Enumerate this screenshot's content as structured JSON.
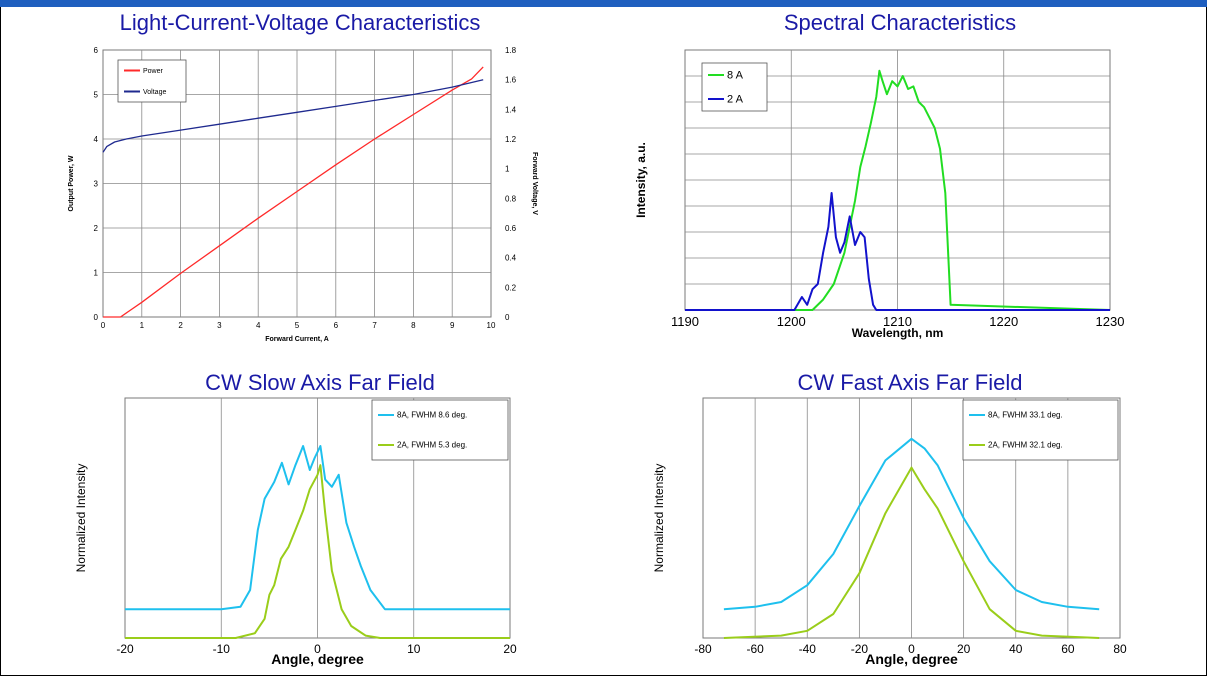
{
  "chart_data": [
    {
      "id": "lcv",
      "type": "line",
      "title": "Light-Current-Voltage Characteristics",
      "xlabel": "Forward Current, A",
      "ylabel": "Output Power, W",
      "y2label": "Forward Voltage, V",
      "xlim": [
        0,
        10
      ],
      "ylim": [
        0,
        6
      ],
      "y2lim": [
        0,
        1.8
      ],
      "xticks": [
        0,
        1,
        2,
        3,
        4,
        5,
        6,
        7,
        8,
        9,
        10
      ],
      "yticks": [
        0,
        1,
        2,
        3,
        4,
        5,
        6
      ],
      "y2ticks": [
        0,
        0.2,
        0.4,
        0.6,
        0.8,
        1,
        1.2,
        1.4,
        1.6,
        1.8
      ],
      "grid": true,
      "legend": "top-left",
      "series": [
        {
          "name": "Power",
          "axis": "left",
          "color": "#ff2a2a",
          "x": [
            0,
            0.45,
            1,
            2,
            3,
            4,
            5,
            6,
            7,
            8,
            9,
            9.5,
            9.8
          ],
          "y": [
            0,
            0,
            0.33,
            0.98,
            1.6,
            2.22,
            2.82,
            3.42,
            4.0,
            4.55,
            5.1,
            5.35,
            5.62
          ]
        },
        {
          "name": "Voltage",
          "axis": "right",
          "color": "#1f2a8f",
          "x": [
            0,
            0.1,
            0.3,
            0.6,
            1,
            2,
            3,
            4,
            5,
            6,
            7,
            8,
            9,
            9.8
          ],
          "y": [
            1.11,
            1.15,
            1.18,
            1.2,
            1.22,
            1.26,
            1.3,
            1.34,
            1.38,
            1.42,
            1.46,
            1.5,
            1.55,
            1.6
          ]
        }
      ]
    },
    {
      "id": "spec",
      "type": "line",
      "title": "Spectral Characteristics",
      "xlabel": "Wavelength, nm",
      "ylabel": "Intensity, a.u.",
      "xlim": [
        1190,
        1230
      ],
      "ylim": [
        0,
        1
      ],
      "xticks": [
        1190,
        1200,
        1210,
        1220,
        1230
      ],
      "grid": true,
      "legend": "top-left",
      "series": [
        {
          "name": "8 A",
          "color": "#22dd22",
          "x": [
            1190,
            1202,
            1203,
            1204,
            1205,
            1206,
            1206.5,
            1207,
            1207.5,
            1208,
            1208.3,
            1208.6,
            1209,
            1209.5,
            1210,
            1210.5,
            1211,
            1211.5,
            1212,
            1212.5,
            1213,
            1213.5,
            1214,
            1214.5,
            1215,
            1230
          ],
          "y": [
            0,
            0,
            0.04,
            0.1,
            0.22,
            0.42,
            0.55,
            0.63,
            0.72,
            0.82,
            0.92,
            0.88,
            0.83,
            0.88,
            0.86,
            0.9,
            0.85,
            0.86,
            0.8,
            0.78,
            0.74,
            0.7,
            0.62,
            0.45,
            0.02,
            0
          ]
        },
        {
          "name": "2 A",
          "color": "#1212cc",
          "x": [
            1190,
            1200.3,
            1201,
            1201.5,
            1202,
            1202.5,
            1203,
            1203.5,
            1203.8,
            1204.2,
            1204.6,
            1205,
            1205.5,
            1206,
            1206.5,
            1206.9,
            1207.3,
            1207.7,
            1208,
            1230
          ],
          "y": [
            0,
            0,
            0.05,
            0.02,
            0.08,
            0.1,
            0.22,
            0.32,
            0.45,
            0.28,
            0.22,
            0.26,
            0.36,
            0.25,
            0.3,
            0.28,
            0.12,
            0.02,
            0,
            0
          ]
        }
      ]
    },
    {
      "id": "slow",
      "type": "line",
      "title": "CW Slow Axis Far Field",
      "xlabel": "Angle, degree",
      "ylabel": "Normalized Intensity",
      "xlim": [
        -20,
        20
      ],
      "ylim": [
        0,
        1
      ],
      "xticks": [
        -20,
        -10,
        0,
        10,
        20
      ],
      "grid": true,
      "legend": "top-right",
      "series": [
        {
          "name": "8A, FWHM 8.6 deg.",
          "color": "#1ec0ee",
          "x": [
            -20,
            -10,
            -8,
            -7,
            -6.2,
            -5.5,
            -4.5,
            -3.7,
            -3,
            -2.3,
            -1.5,
            -0.8,
            -0.3,
            0.3,
            0.8,
            1.5,
            2.2,
            3,
            3.8,
            4.5,
            5.5,
            7,
            20
          ],
          "y": [
            0.12,
            0.12,
            0.13,
            0.2,
            0.45,
            0.58,
            0.65,
            0.73,
            0.64,
            0.72,
            0.8,
            0.7,
            0.75,
            0.8,
            0.66,
            0.63,
            0.68,
            0.48,
            0.38,
            0.3,
            0.2,
            0.12,
            0.12
          ]
        },
        {
          "name": "2A, FWHM 5.3 deg.",
          "color": "#9acd1a",
          "x": [
            -20,
            -8.5,
            -6.5,
            -5.5,
            -5,
            -4.5,
            -3.8,
            -3,
            -2.3,
            -1.5,
            -0.8,
            0,
            0.3,
            0.8,
            1.5,
            2.5,
            3.5,
            5,
            6.5,
            20
          ],
          "y": [
            0,
            0,
            0.02,
            0.08,
            0.18,
            0.22,
            0.33,
            0.38,
            0.45,
            0.53,
            0.62,
            0.68,
            0.72,
            0.52,
            0.28,
            0.12,
            0.05,
            0.01,
            0,
            0
          ]
        }
      ]
    },
    {
      "id": "fast",
      "type": "line",
      "title": "CW Fast Axis Far Field",
      "xlabel": "Angle, degree",
      "ylabel": "Normalized Intensity",
      "xlim": [
        -80,
        80
      ],
      "ylim": [
        0,
        1
      ],
      "xticks": [
        -80,
        -60,
        -40,
        -20,
        0,
        20,
        40,
        60,
        80
      ],
      "grid": true,
      "legend": "top-right",
      "series": [
        {
          "name": "8A, FWHM 33.1 deg.",
          "color": "#1ec0ee",
          "x": [
            -72,
            -60,
            -50,
            -40,
            -30,
            -20,
            -10,
            0,
            5,
            10,
            20,
            30,
            40,
            50,
            60,
            72
          ],
          "y": [
            0.12,
            0.13,
            0.15,
            0.22,
            0.35,
            0.55,
            0.74,
            0.83,
            0.79,
            0.72,
            0.5,
            0.32,
            0.2,
            0.15,
            0.13,
            0.12
          ]
        },
        {
          "name": "2A, FWHM 32.1 deg.",
          "color": "#9acd1a",
          "x": [
            -72,
            -50,
            -40,
            -30,
            -20,
            -10,
            0,
            5,
            10,
            20,
            30,
            40,
            50,
            72
          ],
          "y": [
            0,
            0.01,
            0.03,
            0.1,
            0.27,
            0.52,
            0.71,
            0.62,
            0.54,
            0.32,
            0.12,
            0.03,
            0.01,
            0
          ]
        }
      ]
    }
  ]
}
